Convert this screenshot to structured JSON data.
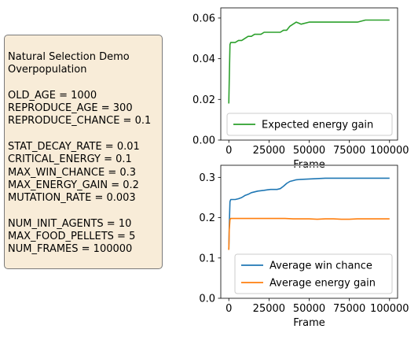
{
  "info_box": {
    "lines": [
      "Natural Selection Demo",
      "Overpopulation",
      "",
      "OLD_AGE = 1000",
      "REPRODUCE_AGE = 300",
      "REPRODUCE_CHANCE = 0.1",
      "",
      "STAT_DECAY_RATE = 0.01",
      "CRITICAL_ENERGY = 0.1",
      "MAX_WIN_CHANCE = 0.3",
      "MAX_ENERGY_GAIN = 0.2",
      "MUTATION_RATE = 0.003",
      "",
      "NUM_INIT_AGENTS = 10",
      "MAX_FOOD_PELLETS = 5",
      "NUM_FRAMES = 100000"
    ]
  },
  "chart_data": [
    {
      "type": "line",
      "xlabel": "Frame",
      "ylabel": "",
      "xlim": [
        -5000,
        105000
      ],
      "ylim": [
        0,
        0.065
      ],
      "xticks": [
        0,
        25000,
        50000,
        75000,
        100000
      ],
      "yticks": [
        0.0,
        0.02,
        0.04,
        0.06
      ],
      "ytick_labels": [
        "0.00",
        "0.02",
        "0.04",
        "0.06"
      ],
      "grid": false,
      "legend_position": "lower-right",
      "series": [
        {
          "name": "Expected energy gain",
          "color": "#2ca02c",
          "x": [
            0,
            300,
            700,
            1200,
            2000,
            4000,
            6000,
            8000,
            10000,
            12000,
            14000,
            16000,
            18000,
            20000,
            22000,
            24000,
            26000,
            28000,
            30000,
            32000,
            34000,
            36000,
            38000,
            40000,
            42000,
            45000,
            50000,
            55000,
            60000,
            65000,
            70000,
            75000,
            80000,
            85000,
            90000,
            95000,
            100000
          ],
          "y": [
            0.018,
            0.03,
            0.047,
            0.048,
            0.048,
            0.048,
            0.049,
            0.049,
            0.05,
            0.051,
            0.051,
            0.052,
            0.052,
            0.052,
            0.053,
            0.053,
            0.053,
            0.053,
            0.053,
            0.053,
            0.054,
            0.054,
            0.056,
            0.057,
            0.058,
            0.057,
            0.058,
            0.058,
            0.058,
            0.058,
            0.058,
            0.058,
            0.058,
            0.059,
            0.059,
            0.059,
            0.059
          ]
        }
      ]
    },
    {
      "type": "line",
      "xlabel": "Frame",
      "ylabel": "",
      "xlim": [
        -5000,
        105000
      ],
      "ylim": [
        0,
        0.33
      ],
      "xticks": [
        0,
        25000,
        50000,
        75000,
        100000
      ],
      "yticks": [
        0.0,
        0.1,
        0.2,
        0.3
      ],
      "ytick_labels": [
        "0.0",
        "0.1",
        "0.2",
        "0.3"
      ],
      "grid": false,
      "legend_position": "lower-right",
      "series": [
        {
          "name": "Average win chance",
          "color": "#1f77b4",
          "x": [
            0,
            300,
            700,
            1200,
            2000,
            4000,
            6000,
            8000,
            10000,
            12000,
            14000,
            16000,
            18000,
            20000,
            22000,
            24000,
            26000,
            28000,
            30000,
            32000,
            34000,
            36000,
            38000,
            40000,
            42000,
            45000,
            50000,
            55000,
            60000,
            65000,
            70000,
            75000,
            80000,
            85000,
            90000,
            95000,
            100000
          ],
          "y": [
            0.12,
            0.18,
            0.24,
            0.245,
            0.245,
            0.245,
            0.247,
            0.25,
            0.255,
            0.258,
            0.262,
            0.264,
            0.266,
            0.267,
            0.268,
            0.269,
            0.27,
            0.27,
            0.27,
            0.272,
            0.278,
            0.285,
            0.29,
            0.292,
            0.294,
            0.295,
            0.296,
            0.297,
            0.298,
            0.298,
            0.298,
            0.298,
            0.298,
            0.298,
            0.298,
            0.298,
            0.298
          ]
        },
        {
          "name": "Average energy gain",
          "color": "#ff7f0e",
          "x": [
            0,
            300,
            700,
            1200,
            2000,
            5000,
            10000,
            15000,
            20000,
            25000,
            30000,
            35000,
            40000,
            45000,
            50000,
            55000,
            60000,
            65000,
            70000,
            75000,
            80000,
            85000,
            90000,
            95000,
            100000
          ],
          "y": [
            0.12,
            0.17,
            0.195,
            0.198,
            0.198,
            0.198,
            0.198,
            0.198,
            0.198,
            0.198,
            0.198,
            0.198,
            0.197,
            0.197,
            0.197,
            0.196,
            0.197,
            0.197,
            0.196,
            0.196,
            0.197,
            0.197,
            0.197,
            0.197,
            0.197
          ]
        }
      ]
    }
  ]
}
